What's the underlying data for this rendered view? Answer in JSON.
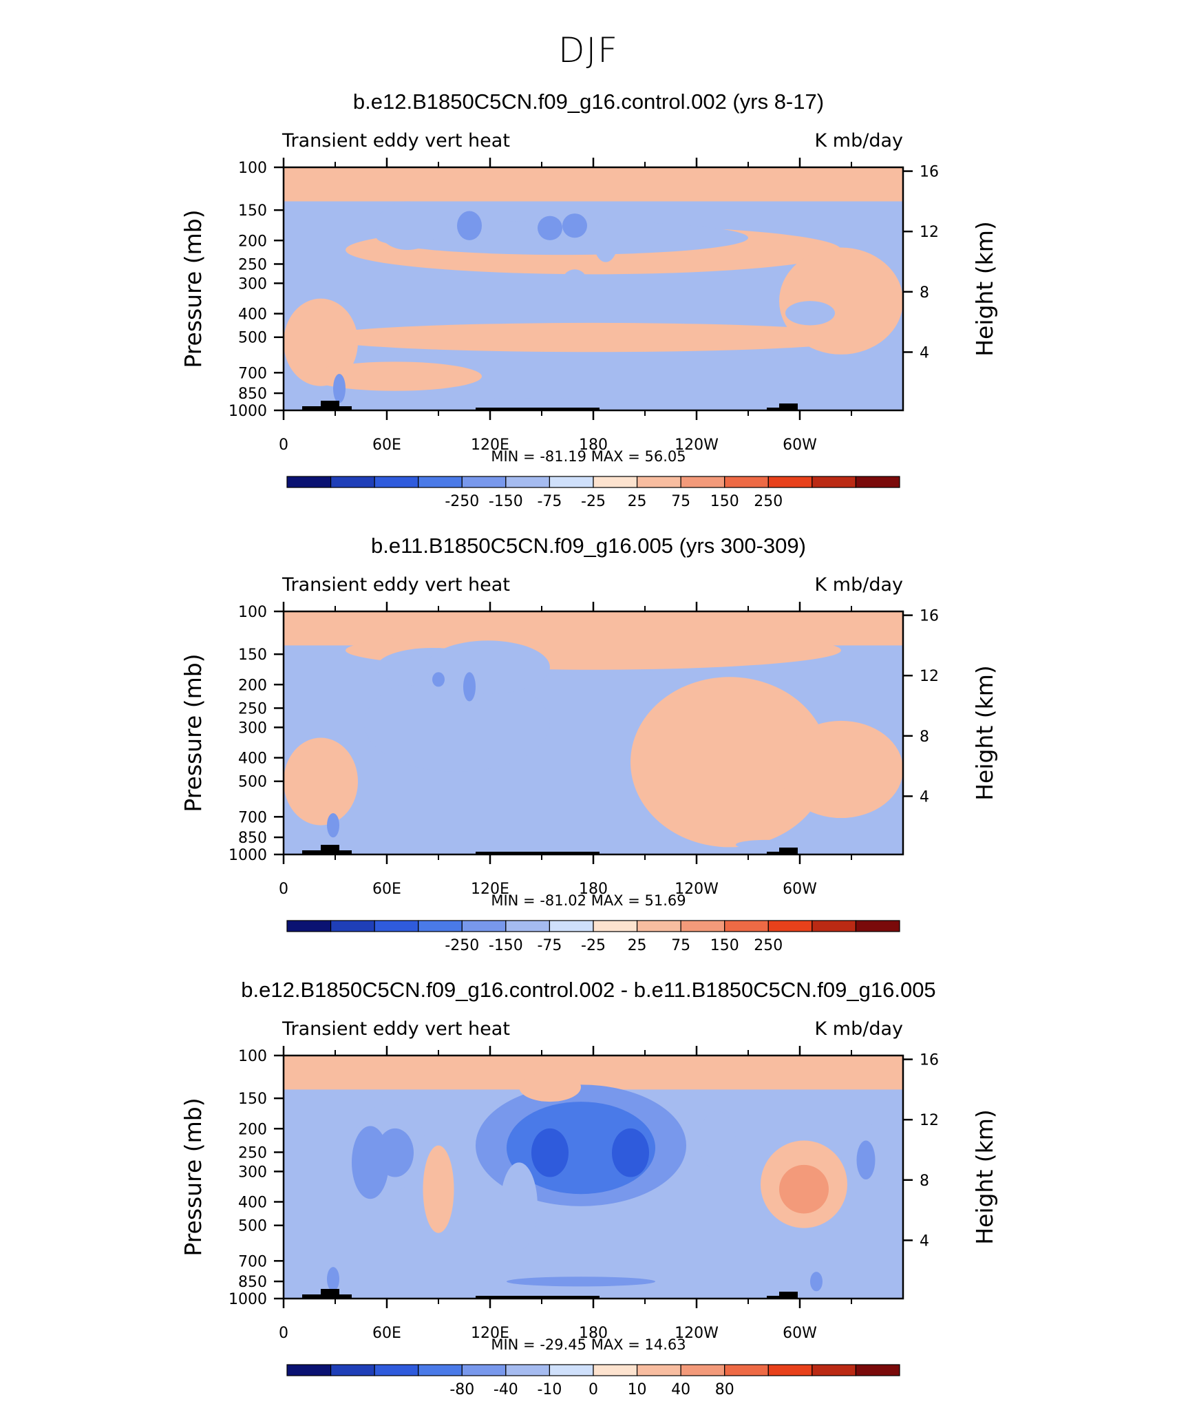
{
  "page_title": "DJF",
  "chart_data": [
    {
      "type": "heatmap",
      "title": "b.e12.B1850C5CN.f09_g16.control.002 (yrs 8-17)",
      "left_string": "Transient eddy vert heat",
      "right_string": "K mb/day",
      "xlabel": "",
      "ylabel": "Pressure (mb)",
      "y2label": "Height (km)",
      "x_ticks": [
        "0",
        "60E",
        "120E",
        "180",
        "120W",
        "60W"
      ],
      "y_ticks": [
        "100",
        "150",
        "200",
        "250",
        "300",
        "400",
        "500",
        "700",
        "850",
        "1000"
      ],
      "y2_ticks": [
        "16",
        "12",
        "8",
        "4"
      ],
      "stats_label": "MIN = -81.19   MAX =  56.05",
      "min": -81.19,
      "max": 56.05,
      "colorbar_labels": [
        "-250",
        "-150",
        "-75",
        "-25",
        "25",
        "75",
        "150",
        "250"
      ],
      "colorbar_colors": [
        "#0a1272",
        "#1f3fb8",
        "#2f5bdc",
        "#4a7ae8",
        "#7898ec",
        "#a5bbf0",
        "#cfe0fb",
        "#fde3cf",
        "#f8bda0",
        "#f39a7a",
        "#ee6a45",
        "#e8411b",
        "#bb2a14",
        "#7a0a0a"
      ]
    },
    {
      "type": "heatmap",
      "title": "b.e11.B1850C5CN.f09_g16.005 (yrs 300-309)",
      "left_string": "Transient eddy vert heat",
      "right_string": "K mb/day",
      "xlabel": "",
      "ylabel": "Pressure (mb)",
      "y2label": "Height (km)",
      "x_ticks": [
        "0",
        "60E",
        "120E",
        "180",
        "120W",
        "60W"
      ],
      "y_ticks": [
        "100",
        "150",
        "200",
        "250",
        "300",
        "400",
        "500",
        "700",
        "850",
        "1000"
      ],
      "y2_ticks": [
        "16",
        "12",
        "8",
        "4"
      ],
      "stats_label": "MIN = -81.02   MAX =  51.69",
      "min": -81.02,
      "max": 51.69,
      "colorbar_labels": [
        "-250",
        "-150",
        "-75",
        "-25",
        "25",
        "75",
        "150",
        "250"
      ],
      "colorbar_colors": [
        "#0a1272",
        "#1f3fb8",
        "#2f5bdc",
        "#4a7ae8",
        "#7898ec",
        "#a5bbf0",
        "#cfe0fb",
        "#fde3cf",
        "#f8bda0",
        "#f39a7a",
        "#ee6a45",
        "#e8411b",
        "#bb2a14",
        "#7a0a0a"
      ]
    },
    {
      "type": "heatmap",
      "title": "b.e12.B1850C5CN.f09_g16.control.002 - b.e11.B1850C5CN.f09_g16.005",
      "left_string": "Transient eddy vert heat",
      "right_string": "K mb/day",
      "xlabel": "",
      "ylabel": "Pressure (mb)",
      "y2label": "Height (km)",
      "x_ticks": [
        "0",
        "60E",
        "120E",
        "180",
        "120W",
        "60W"
      ],
      "y_ticks": [
        "100",
        "150",
        "200",
        "250",
        "300",
        "400",
        "500",
        "700",
        "850",
        "1000"
      ],
      "y2_ticks": [
        "16",
        "12",
        "8",
        "4"
      ],
      "stats_label": "MIN = -29.45   MAX =  14.63",
      "min": -29.45,
      "max": 14.63,
      "colorbar_labels": [
        "-80",
        "-40",
        "-10",
        "0",
        "10",
        "40",
        "80"
      ],
      "colorbar_colors": [
        "#0a1272",
        "#1f3fb8",
        "#2f5bdc",
        "#4a7ae8",
        "#7898ec",
        "#a5bbf0",
        "#cfe0fb",
        "#fde3cf",
        "#f8bda0",
        "#f39a7a",
        "#ee6a45",
        "#e8411b",
        "#bb2a14",
        "#7a0a0a"
      ]
    }
  ]
}
